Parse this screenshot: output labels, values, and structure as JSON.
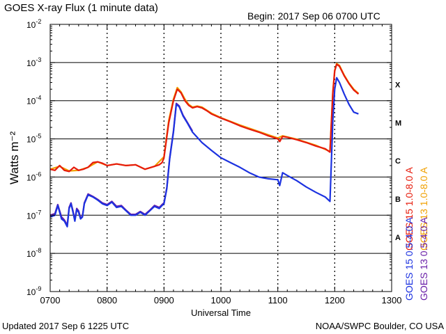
{
  "chart_data": {
    "type": "line",
    "title": "GOES X-ray Flux (1 minute data)",
    "begin_label": "Begin: 2017 Sep 06 0700 UTC",
    "xlabel": "Universal Time",
    "ylabel": "Watts m⁻²",
    "y_scale": "log",
    "ylim": [
      1e-09,
      0.01
    ],
    "xlim": [
      "0700",
      "1300"
    ],
    "x_tick_labels": [
      "0700",
      "0800",
      "0900",
      "1000",
      "1100",
      "1200",
      "1300"
    ],
    "y_tick_labels": [
      {
        "base": "10",
        "exp": "-9"
      },
      {
        "base": "10",
        "exp": "-8"
      },
      {
        "base": "10",
        "exp": "-7"
      },
      {
        "base": "10",
        "exp": "-6"
      },
      {
        "base": "10",
        "exp": "-5"
      },
      {
        "base": "10",
        "exp": "-4"
      },
      {
        "base": "10",
        "exp": "-3"
      },
      {
        "base": "10",
        "exp": "-2"
      }
    ],
    "flare_classes": [
      "A",
      "B",
      "C",
      "M",
      "X"
    ],
    "grid": true,
    "legend_position": "right",
    "series": [
      {
        "name": "GOES 15 1.0-8.0 A",
        "color": "#e61a0a",
        "x": [
          "07:00",
          "07:05",
          "07:10",
          "07:15",
          "07:20",
          "07:25",
          "07:30",
          "07:35",
          "07:40",
          "07:45",
          "07:50",
          "07:55",
          "08:00",
          "08:10",
          "08:20",
          "08:30",
          "08:40",
          "08:50",
          "08:55",
          "08:58",
          "09:00",
          "09:05",
          "09:10",
          "09:14",
          "09:18",
          "09:22",
          "09:26",
          "09:30",
          "09:35",
          "09:40",
          "09:45",
          "09:50",
          "10:00",
          "10:10",
          "10:20",
          "10:30",
          "10:40",
          "10:50",
          "11:00",
          "11:02",
          "11:05",
          "11:10",
          "11:20",
          "11:30",
          "11:40",
          "11:50",
          "11:55",
          "11:58",
          "12:00",
          "12:02",
          "12:05",
          "12:10",
          "12:15",
          "12:20",
          "12:25"
        ],
        "values": [
          1.6e-06,
          1.5e-06,
          2e-06,
          1.5e-06,
          1.4e-06,
          1.8e-06,
          1.5e-06,
          1.6e-06,
          1.8e-06,
          2.4e-06,
          2.5e-06,
          2.3e-06,
          2e-06,
          2.2e-06,
          2e-06,
          2.1e-06,
          1.6e-06,
          1.9e-06,
          2.1e-06,
          2.4e-06,
          3.2e-06,
          2.6e-05,
          0.0001,
          0.0002,
          0.00016,
          0.0001,
          7.6e-05,
          6.5e-05,
          7e-05,
          6.5e-05,
          5.5e-05,
          4.5e-05,
          3.5e-05,
          2.8e-05,
          2.2e-05,
          1.8e-05,
          1.5e-05,
          1.2e-05,
          1e-05,
          8.5e-06,
          1.15e-05,
          1.1e-05,
          9.5e-06,
          8e-06,
          6.5e-06,
          5.5e-06,
          4.5e-06,
          0.00016,
          0.0006,
          0.0009,
          0.0008,
          0.00045,
          0.00028,
          0.00019,
          0.00015
        ]
      },
      {
        "name": "GOES 13 1.0-8.0 A",
        "color": "#f0a000",
        "x": [
          "07:00",
          "07:10",
          "07:20",
          "07:30",
          "07:40",
          "07:50",
          "08:00",
          "08:10",
          "08:20",
          "08:30",
          "08:40",
          "08:50",
          "09:00",
          "09:05",
          "09:10",
          "09:14",
          "09:18",
          "09:22",
          "09:26",
          "09:30",
          "09:35",
          "09:40",
          "09:50",
          "10:00",
          "10:20",
          "10:40",
          "11:00",
          "11:05",
          "11:20",
          "11:40",
          "11:55",
          "11:58",
          "12:00",
          "12:02",
          "12:05",
          "12:10",
          "12:15",
          "12:20",
          "12:25"
        ],
        "values": [
          1.6e-06,
          1.9e-06,
          1.45e-06,
          1.5e-06,
          1.8e-06,
          2.5e-06,
          2e-06,
          2.2e-06,
          2e-06,
          2.1e-06,
          1.6e-06,
          1.9e-06,
          3.4e-06,
          3e-05,
          0.00011,
          0.00022,
          0.00017,
          0.00011,
          8e-05,
          6.8e-05,
          7.2e-05,
          6.8e-05,
          4.7e-05,
          3.6e-05,
          2.3e-05,
          1.55e-05,
          1.05e-05,
          1.2e-05,
          9.8e-06,
          6.8e-06,
          4.7e-06,
          0.00017,
          0.00063,
          0.00094,
          0.00084,
          0.00047,
          0.00029,
          0.0002,
          0.000155
        ]
      },
      {
        "name": "GOES 15 0.5-4.0 A",
        "color": "#1c32e0",
        "x": [
          "07:00",
          "07:05",
          "07:08",
          "07:10",
          "07:12",
          "07:15",
          "07:18",
          "07:20",
          "07:22",
          "07:24",
          "07:26",
          "07:28",
          "07:30",
          "07:32",
          "07:34",
          "07:36",
          "07:40",
          "07:45",
          "07:50",
          "07:55",
          "08:00",
          "08:05",
          "08:10",
          "08:15",
          "08:20",
          "08:25",
          "08:30",
          "08:35",
          "08:40",
          "08:45",
          "08:50",
          "08:55",
          "08:58",
          "09:00",
          "09:03",
          "09:06",
          "09:10",
          "09:13",
          "09:16",
          "09:20",
          "09:25",
          "09:30",
          "09:40",
          "09:50",
          "10:00",
          "10:10",
          "10:20",
          "10:30",
          "10:40",
          "10:50",
          "11:00",
          "11:02",
          "11:05",
          "11:10",
          "11:20",
          "11:30",
          "11:40",
          "11:50",
          "11:55",
          "11:58",
          "12:00",
          "12:02",
          "12:05",
          "12:10",
          "12:15",
          "12:20",
          "12:25"
        ],
        "values": [
          9e-08,
          1e-07,
          1.8e-07,
          1.2e-07,
          8e-08,
          7e-08,
          5e-08,
          1.5e-07,
          2e-07,
          1.2e-07,
          7e-08,
          1.4e-07,
          1.2e-07,
          8e-08,
          9e-08,
          2e-07,
          3.4e-07,
          3e-07,
          2.5e-07,
          2e-07,
          1.8e-07,
          2.2e-07,
          1.6e-07,
          1.7e-07,
          1.3e-07,
          1e-07,
          1e-07,
          1.2e-07,
          1e-07,
          1.3e-07,
          1.7e-07,
          1.5e-07,
          1.8e-07,
          2e-07,
          5e-07,
          3e-06,
          1.5e-05,
          8e-05,
          7e-05,
          4e-05,
          2.5e-05,
          1.5e-05,
          8e-06,
          5e-06,
          3.2e-06,
          2.4e-06,
          1.8e-06,
          1.3e-06,
          1e-06,
          9e-07,
          8.5e-07,
          6e-07,
          1.3e-06,
          1.1e-06,
          8e-07,
          5.5e-07,
          4e-07,
          3e-07,
          2.3e-07,
          3e-05,
          0.0002,
          0.0004,
          0.0003,
          0.00015,
          8e-05,
          5e-05,
          4.5e-05
        ]
      },
      {
        "name": "GOES 13 0.5-4.0 A",
        "color": "#6a1fa8",
        "x": [
          "07:00",
          "07:05",
          "07:08",
          "07:10",
          "07:12",
          "07:15",
          "07:18",
          "07:20",
          "07:22",
          "07:24",
          "07:26",
          "07:28",
          "07:30",
          "07:32",
          "07:34",
          "07:36",
          "07:40",
          "07:45",
          "07:50",
          "07:55",
          "08:00",
          "08:05",
          "08:10",
          "08:15",
          "08:20",
          "08:25",
          "08:30",
          "08:35",
          "08:40",
          "08:45",
          "08:50",
          "08:55",
          "08:58",
          "09:00",
          "09:03",
          "09:06",
          "09:10",
          "09:13",
          "09:16",
          "09:20",
          "09:25",
          "09:30"
        ],
        "values": [
          1e-07,
          1.1e-07,
          1.9e-07,
          1.3e-07,
          9e-08,
          7.5e-08,
          5.5e-08,
          1.6e-07,
          2.1e-07,
          1.3e-07,
          7.5e-08,
          1.5e-07,
          1.3e-07,
          8.5e-08,
          9.5e-08,
          2.1e-07,
          3.6e-07,
          3.1e-07,
          2.6e-07,
          2.1e-07,
          1.9e-07,
          2.3e-07,
          1.7e-07,
          1.8e-07,
          1.35e-07,
          1.05e-07,
          1.05e-07,
          1.25e-07,
          1.05e-07,
          1.35e-07,
          1.8e-07,
          1.6e-07,
          1.9e-07,
          2.1e-07,
          5.3e-07,
          3.2e-06,
          1.6e-05,
          8.5e-05,
          7.3e-05,
          4.2e-05,
          2.6e-05,
          1.6e-05
        ]
      }
    ]
  },
  "footer": {
    "updated": "Updated 2017 Sep  6 1225 UTC",
    "source": "NOAA/SWPC Boulder, CO USA"
  }
}
